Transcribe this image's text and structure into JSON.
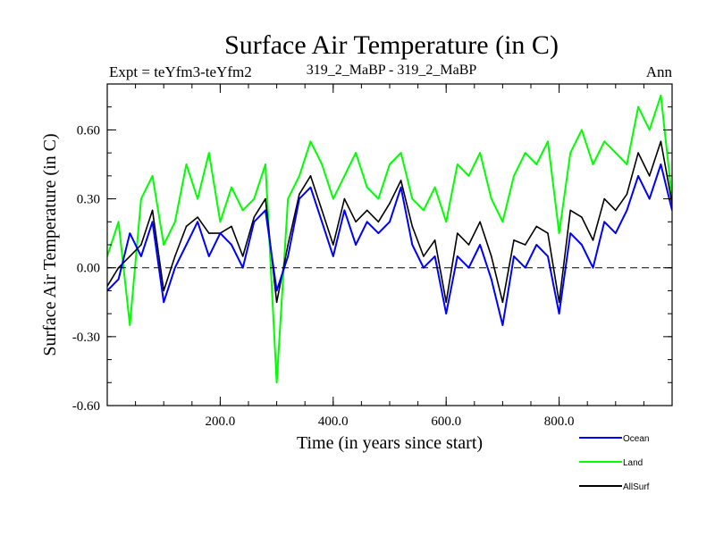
{
  "chart_data": {
    "type": "line",
    "title": "Surface Air Temperature (in C)",
    "subtitle_left": "Expt = teYfm3-teYfm2",
    "subtitle_center": "319_2_MaBP - 319_2_MaBP",
    "subtitle_right": "Ann",
    "xlabel": "Time (in years since start)",
    "ylabel": "Surface Air Temperature (in C)",
    "xlim": [
      0,
      1000
    ],
    "ylim": [
      -0.6,
      0.8
    ],
    "x_ticks": [
      200,
      400,
      600,
      800
    ],
    "x_tick_labels": [
      "200.0",
      "400.0",
      "600.0",
      "800.0"
    ],
    "y_ticks": [
      -0.6,
      -0.3,
      0.0,
      0.3,
      0.6
    ],
    "y_tick_labels": [
      "-0.60",
      "-0.30",
      "0.00",
      "0.30",
      "0.60"
    ],
    "zero_line": true,
    "legend_position": "bottom-right",
    "series": [
      {
        "name": "Ocean",
        "color": "#0000ff",
        "x": [
          0,
          20,
          40,
          60,
          80,
          100,
          120,
          140,
          160,
          180,
          200,
          220,
          240,
          260,
          280,
          300,
          320,
          340,
          360,
          380,
          400,
          420,
          440,
          460,
          480,
          500,
          520,
          540,
          560,
          580,
          600,
          620,
          640,
          660,
          680,
          700,
          720,
          740,
          760,
          780,
          800,
          820,
          840,
          860,
          880,
          900,
          920,
          940,
          960,
          980,
          1000
        ],
        "values": [
          -0.1,
          -0.05,
          0.15,
          0.05,
          0.2,
          -0.15,
          0.0,
          0.1,
          0.2,
          0.05,
          0.15,
          0.1,
          0.0,
          0.2,
          0.25,
          -0.1,
          0.05,
          0.3,
          0.35,
          0.2,
          0.05,
          0.25,
          0.1,
          0.2,
          0.15,
          0.2,
          0.35,
          0.1,
          0.0,
          0.05,
          -0.2,
          0.05,
          0.0,
          0.1,
          -0.05,
          -0.25,
          0.05,
          0.0,
          0.1,
          0.05,
          -0.2,
          0.15,
          0.1,
          0.0,
          0.2,
          0.15,
          0.25,
          0.4,
          0.3,
          0.45,
          0.25
        ]
      },
      {
        "name": "Land",
        "color": "#00ff00",
        "x": [
          0,
          20,
          40,
          60,
          80,
          100,
          120,
          140,
          160,
          180,
          200,
          220,
          240,
          260,
          280,
          300,
          320,
          340,
          360,
          380,
          400,
          420,
          440,
          460,
          480,
          500,
          520,
          540,
          560,
          580,
          600,
          620,
          640,
          660,
          680,
          700,
          720,
          740,
          760,
          780,
          800,
          820,
          840,
          860,
          880,
          900,
          920,
          940,
          960,
          980,
          1000
        ],
        "values": [
          0.05,
          0.2,
          -0.25,
          0.3,
          0.4,
          0.1,
          0.2,
          0.45,
          0.3,
          0.5,
          0.2,
          0.35,
          0.25,
          0.3,
          0.45,
          -0.5,
          0.3,
          0.4,
          0.55,
          0.45,
          0.3,
          0.4,
          0.5,
          0.35,
          0.3,
          0.45,
          0.5,
          0.3,
          0.25,
          0.35,
          0.2,
          0.45,
          0.4,
          0.5,
          0.3,
          0.2,
          0.4,
          0.5,
          0.45,
          0.55,
          0.15,
          0.5,
          0.6,
          0.45,
          0.55,
          0.5,
          0.45,
          0.7,
          0.6,
          0.75,
          0.3
        ]
      },
      {
        "name": "AllSurf",
        "color": "#000000",
        "x": [
          0,
          20,
          40,
          60,
          80,
          100,
          120,
          140,
          160,
          180,
          200,
          220,
          240,
          260,
          280,
          300,
          320,
          340,
          360,
          380,
          400,
          420,
          440,
          460,
          480,
          500,
          520,
          540,
          560,
          580,
          600,
          620,
          640,
          660,
          680,
          700,
          720,
          740,
          760,
          780,
          800,
          820,
          840,
          860,
          880,
          900,
          920,
          940,
          960,
          980,
          1000
        ],
        "values": [
          -0.08,
          0.0,
          0.05,
          0.1,
          0.25,
          -0.1,
          0.05,
          0.18,
          0.22,
          0.15,
          0.15,
          0.18,
          0.05,
          0.22,
          0.3,
          -0.15,
          0.1,
          0.32,
          0.4,
          0.25,
          0.1,
          0.3,
          0.2,
          0.25,
          0.2,
          0.28,
          0.38,
          0.18,
          0.05,
          0.12,
          -0.15,
          0.15,
          0.1,
          0.2,
          0.05,
          -0.15,
          0.12,
          0.1,
          0.18,
          0.15,
          -0.15,
          0.25,
          0.22,
          0.12,
          0.3,
          0.25,
          0.32,
          0.5,
          0.4,
          0.55,
          0.28
        ]
      }
    ]
  }
}
